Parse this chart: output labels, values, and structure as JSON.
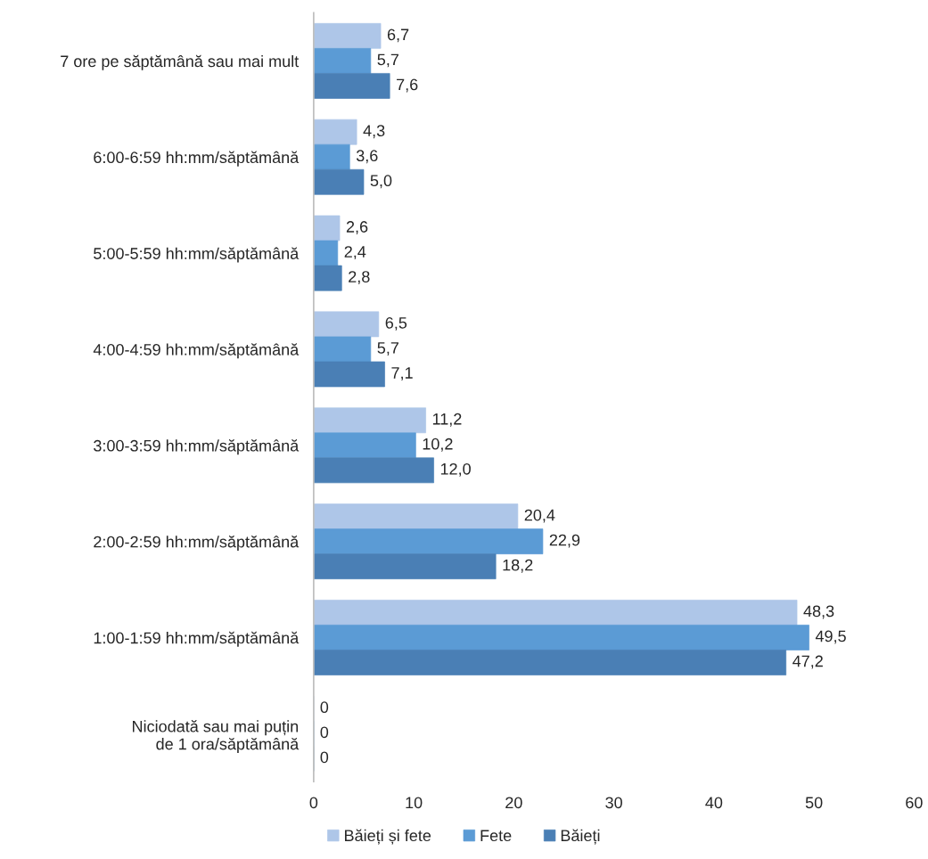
{
  "chart_data": {
    "type": "bar",
    "orientation": "horizontal",
    "categories": [
      "7 ore pe săptămână sau mai mult",
      "6:00-6:59 hh:mm/săptămână",
      "5:00-5:59 hh:mm/săptămână",
      "4:00-4:59 hh:mm/săptămână",
      "3:00-3:59 hh:mm/săptămână",
      "2:00-2:59 hh:mm/săptămână",
      "1:00-1:59 hh:mm/săptămână",
      "Niciodată sau mai puțin\nde 1 ora/săptămână"
    ],
    "series": [
      {
        "name": "Băieți și fete",
        "color": "#aec6e8",
        "values": [
          6.7,
          4.3,
          2.6,
          6.5,
          11.2,
          20.4,
          48.3,
          0
        ],
        "value_labels": [
          "6,7",
          "4,3",
          "2,6",
          "6,5",
          "11,2",
          "20,4",
          "48,3",
          "0"
        ]
      },
      {
        "name": "Fete",
        "color": "#5b9bd5",
        "values": [
          5.7,
          3.6,
          2.4,
          5.7,
          10.2,
          22.9,
          49.5,
          0
        ],
        "value_labels": [
          "5,7",
          "3,6",
          "2,4",
          "5,7",
          "10,2",
          "22,9",
          "49,5",
          "0"
        ]
      },
      {
        "name": "Băieți",
        "color": "#4a7fb5",
        "values": [
          7.6,
          5.0,
          2.8,
          7.1,
          12.0,
          18.2,
          47.2,
          0
        ],
        "value_labels": [
          "7,6",
          "5,0",
          "2,8",
          "7,1",
          "12,0",
          "18,2",
          "47,2",
          "0"
        ]
      }
    ],
    "xlim": [
      0,
      60
    ],
    "xticks": [
      0,
      10,
      20,
      30,
      40,
      50,
      60
    ],
    "grid": false,
    "legend": "bottom"
  }
}
